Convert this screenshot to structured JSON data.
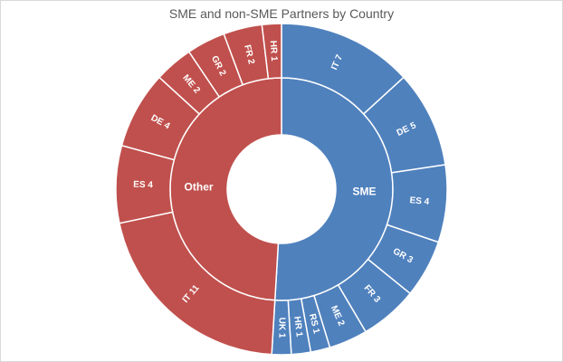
{
  "chart_data": {
    "type": "sunburst",
    "title": "SME and non-SME Partners by Country",
    "groups": [
      {
        "name": "SME",
        "color": "#4F81BD",
        "children": [
          {
            "label": "IT",
            "value": 7
          },
          {
            "label": "DE",
            "value": 5
          },
          {
            "label": "ES",
            "value": 4
          },
          {
            "label": "GR",
            "value": 3
          },
          {
            "label": "FR",
            "value": 3
          },
          {
            "label": "ME",
            "value": 2
          },
          {
            "label": "RS",
            "value": 1
          },
          {
            "label": "HR",
            "value": 1
          },
          {
            "label": "UK",
            "value": 1
          }
        ]
      },
      {
        "name": "Other",
        "color": "#C0504D",
        "children": [
          {
            "label": "IT",
            "value": 11
          },
          {
            "label": "ES",
            "value": 4
          },
          {
            "label": "DE",
            "value": 4
          },
          {
            "label": "ME",
            "value": 2
          },
          {
            "label": "GR",
            "value": 2
          },
          {
            "label": "FR",
            "value": 2
          },
          {
            "label": "HR",
            "value": 1
          }
        ]
      }
    ]
  }
}
